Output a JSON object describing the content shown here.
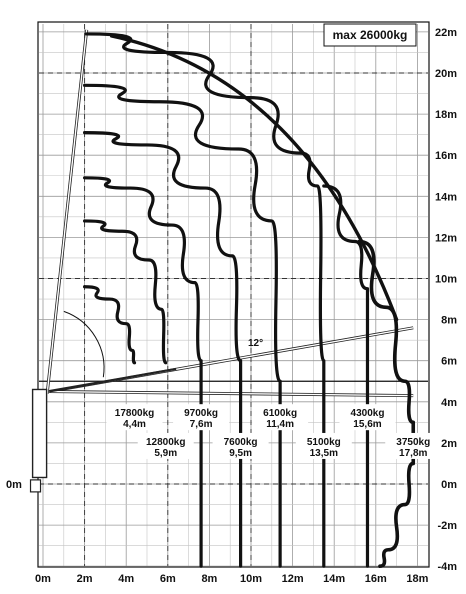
{
  "title_box": "max 26000kg",
  "boom_angle_label": "12°",
  "x_axis_ticks": [
    "0m",
    "2m",
    "4m",
    "6m",
    "8m",
    "10m",
    "12m",
    "14m",
    "16m",
    "18m"
  ],
  "y_axis_ticks": [
    "-4m",
    "-2m",
    "0m",
    "2m",
    "4m",
    "6m",
    "8m",
    "10m",
    "12m",
    "14m",
    "16m",
    "18m",
    "20m",
    "22m"
  ],
  "left_zero_label": "0m",
  "capacities": [
    {
      "load": "17800kg",
      "reach": "4,4m"
    },
    {
      "load": "12800kg",
      "reach": "5,9m"
    },
    {
      "load": "9700kg",
      "reach": "7,6m"
    },
    {
      "load": "7600kg",
      "reach": "9,5m"
    },
    {
      "load": "6100kg",
      "reach": "11,4m"
    },
    {
      "load": "5100kg",
      "reach": "13,5m"
    },
    {
      "load": "4300kg",
      "reach": "15,6m"
    },
    {
      "load": "3750kg",
      "reach": "17,8m"
    }
  ],
  "chart_data": {
    "type": "line",
    "title": "max 26000kg",
    "xlabel": "",
    "ylabel": "",
    "xlim": [
      0,
      18
    ],
    "ylim": [
      -4,
      22
    ],
    "x_ticks": [
      0,
      2,
      4,
      6,
      8,
      10,
      12,
      14,
      16,
      18
    ],
    "y_ticks": [
      -4,
      -2,
      0,
      2,
      4,
      6,
      8,
      10,
      12,
      14,
      16,
      18,
      20,
      22
    ],
    "grid": true,
    "annotation_boom_angle": "12°",
    "series": [
      {
        "load": "17800kg",
        "reach": "4,4m",
        "x": [
          2.0,
          3.2,
          4.0,
          4.3,
          4.4
        ],
        "y": [
          9.6,
          9.0,
          7.8,
          6.5,
          5.9
        ]
      },
      {
        "load": "12800kg",
        "reach": "5,9m",
        "x": [
          2.0,
          3.8,
          5.1,
          5.7,
          5.9
        ],
        "y": [
          12.8,
          12.3,
          10.9,
          8.5,
          5.9
        ]
      },
      {
        "load": "9700kg",
        "reach": "7,6m",
        "x": [
          2.0,
          4.2,
          6.2,
          7.3,
          7.6,
          7.6
        ],
        "y": [
          14.9,
          14.4,
          12.6,
          9.8,
          6.0,
          -4.0
        ]
      },
      {
        "load": "7600kg",
        "reach": "9,5m",
        "x": [
          2.0,
          5.0,
          7.8,
          9.1,
          9.5,
          9.5
        ],
        "y": [
          17.1,
          16.5,
          14.4,
          11.1,
          6.0,
          -4.0
        ]
      },
      {
        "load": "6100kg",
        "reach": "11,4m",
        "x": [
          2.0,
          5.6,
          9.4,
          11.0,
          11.4,
          11.4
        ],
        "y": [
          19.4,
          18.6,
          16.3,
          12.8,
          5.0,
          -4.0
        ]
      },
      {
        "load": "5100kg",
        "reach": "13,5m",
        "x": [
          2.1,
          6.0,
          10.0,
          12.4,
          13.2,
          13.5,
          13.5
        ],
        "y": [
          21.9,
          21.0,
          18.8,
          16.1,
          14.5,
          6.0,
          -4.0
        ]
      },
      {
        "load": "4300kg",
        "reach": "15,6m",
        "x": [
          13.5,
          15.0,
          15.6,
          15.6
        ],
        "y": [
          14.5,
          11.8,
          9.5,
          -4.0
        ]
      },
      {
        "load": "3750kg",
        "reach": "17,8m",
        "x": [
          15.2,
          16.5,
          17.4,
          17.8,
          17.8,
          17.4,
          16.6,
          16.2
        ],
        "y": [
          11.8,
          8.6,
          5.0,
          3.0,
          1.0,
          -1.0,
          -3.2,
          -4.0
        ]
      }
    ]
  }
}
